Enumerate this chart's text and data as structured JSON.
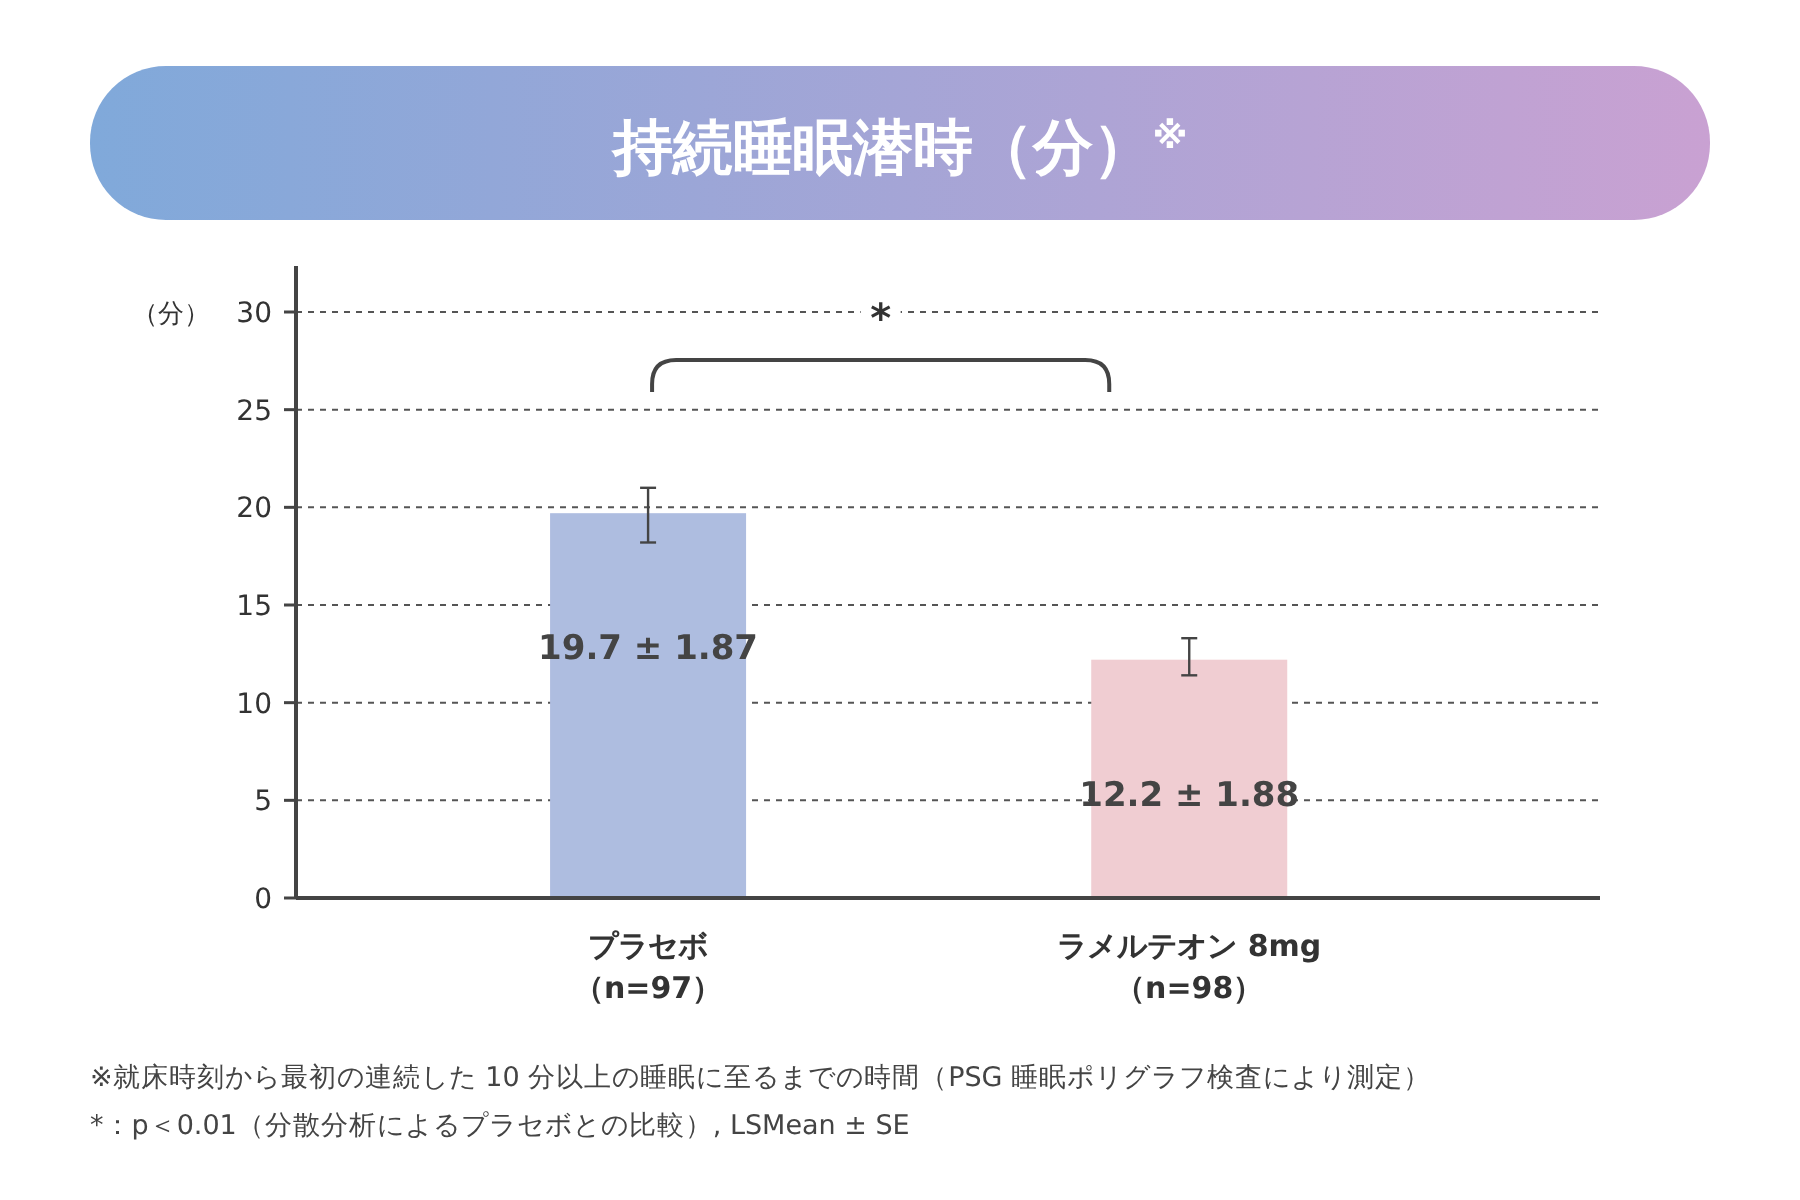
{
  "chart_data": {
    "type": "bar",
    "title": "持続睡眠潜時（分）$^{※}$",
    "ylabel": "（分）",
    "categories": [
      "プラセボ（n=97）",
      "ラメルテオン 8mg（n=98）"
    ],
    "values": [
      19.7,
      12.2
    ],
    "colors": [
      "#aebde0",
      "#f0cdd2"
    ],
    "errors": [
      [
        18.2,
        21.0
      ],
      [
        11.4,
        13.3
      ]
    ],
    "value_labels": [
      "19.7 ± 1.87",
      "12.2 ± 1.88"
    ],
    "ylim": [
      0,
      30
    ],
    "yticks": [
      0,
      5,
      10,
      15,
      20,
      25,
      30
    ],
    "grid": "y",
    "annotations": [
      "*",
      "※就床時刻から最初の連続した 10 分以上の睡眠に至るまでの時間（PSG 睡眠ポリグラフ検査により測定）",
      "*：p＜0.01（分散分析によるプラセボとの比較）, LSMean ± SE"
    ]
  }
}
